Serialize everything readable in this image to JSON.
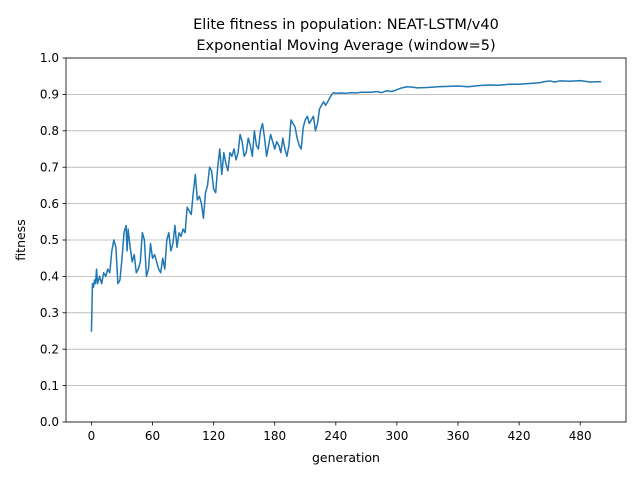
{
  "chart_data": {
    "type": "line",
    "title": "Elite fitness in population: NEAT-LSTM/v40",
    "subtitle": "Exponential Moving Average (window=5)",
    "xlabel": "generation",
    "ylabel": "fitness",
    "xlim": [
      -25,
      525
    ],
    "ylim": [
      0.0,
      1.0
    ],
    "xticks": [
      0,
      60,
      120,
      180,
      240,
      300,
      360,
      420,
      480
    ],
    "yticks": [
      0.0,
      0.1,
      0.2,
      0.3,
      0.4,
      0.5,
      0.6,
      0.7,
      0.8,
      0.9,
      1.0
    ],
    "ytick_labels": [
      "0.0",
      "0.1",
      "0.2",
      "0.3",
      "0.4",
      "0.5",
      "0.6",
      "0.7",
      "0.8",
      "0.9",
      "1.0"
    ],
    "grid": "horizontal",
    "line_color": "#1f77b4",
    "series": [
      {
        "x": [
          0,
          1,
          2,
          3,
          4,
          5,
          6,
          8,
          10,
          12,
          14,
          16,
          18,
          20,
          22,
          24,
          26,
          28,
          30,
          32,
          34,
          35,
          36,
          38,
          40,
          42,
          44,
          46,
          48,
          50,
          52,
          54,
          56,
          58,
          60,
          62,
          64,
          66,
          68,
          70,
          72,
          74,
          76,
          78,
          80,
          82,
          84,
          86,
          88,
          90,
          92,
          94,
          96,
          98,
          100,
          102,
          104,
          106,
          108,
          110,
          112,
          114,
          116,
          118,
          120,
          122,
          124,
          126,
          128,
          130,
          132,
          134,
          136,
          138,
          140,
          142,
          144,
          146,
          148,
          150,
          152,
          154,
          156,
          158,
          160,
          162,
          164,
          166,
          168,
          170,
          172,
          174,
          176,
          178,
          180,
          182,
          184,
          186,
          188,
          190,
          192,
          194,
          196,
          198,
          200,
          202,
          204,
          206,
          208,
          210,
          212,
          214,
          216,
          218,
          220,
          222,
          224,
          226,
          228,
          230,
          232,
          234,
          236,
          238,
          240,
          245,
          250,
          255,
          260,
          265,
          270,
          275,
          280,
          285,
          290,
          295,
          300,
          305,
          310,
          315,
          320,
          330,
          340,
          350,
          360,
          370,
          380,
          390,
          400,
          410,
          420,
          430,
          440,
          445,
          450,
          455,
          460,
          470,
          480,
          490,
          500
        ],
        "y": [
          0.25,
          0.38,
          0.37,
          0.39,
          0.38,
          0.42,
          0.38,
          0.4,
          0.38,
          0.41,
          0.4,
          0.42,
          0.41,
          0.47,
          0.5,
          0.48,
          0.38,
          0.39,
          0.45,
          0.52,
          0.54,
          0.47,
          0.53,
          0.48,
          0.44,
          0.46,
          0.41,
          0.42,
          0.44,
          0.52,
          0.5,
          0.4,
          0.42,
          0.49,
          0.45,
          0.46,
          0.44,
          0.42,
          0.41,
          0.45,
          0.42,
          0.5,
          0.52,
          0.47,
          0.49,
          0.54,
          0.48,
          0.52,
          0.51,
          0.53,
          0.52,
          0.59,
          0.58,
          0.57,
          0.63,
          0.68,
          0.61,
          0.62,
          0.6,
          0.56,
          0.63,
          0.65,
          0.7,
          0.69,
          0.64,
          0.63,
          0.7,
          0.75,
          0.68,
          0.74,
          0.71,
          0.69,
          0.74,
          0.73,
          0.75,
          0.72,
          0.74,
          0.79,
          0.77,
          0.73,
          0.74,
          0.78,
          0.76,
          0.73,
          0.8,
          0.76,
          0.75,
          0.8,
          0.82,
          0.78,
          0.73,
          0.76,
          0.79,
          0.77,
          0.75,
          0.77,
          0.76,
          0.74,
          0.78,
          0.75,
          0.73,
          0.76,
          0.83,
          0.82,
          0.81,
          0.78,
          0.76,
          0.75,
          0.81,
          0.83,
          0.84,
          0.82,
          0.83,
          0.84,
          0.8,
          0.82,
          0.86,
          0.87,
          0.88,
          0.87,
          0.88,
          0.89,
          0.9,
          0.905,
          0.903,
          0.904,
          0.903,
          0.905,
          0.904,
          0.906,
          0.906,
          0.906,
          0.908,
          0.905,
          0.91,
          0.908,
          0.913,
          0.918,
          0.921,
          0.92,
          0.918,
          0.919,
          0.921,
          0.922,
          0.923,
          0.921,
          0.924,
          0.926,
          0.925,
          0.928,
          0.928,
          0.93,
          0.932,
          0.935,
          0.937,
          0.934,
          0.937,
          0.936,
          0.938,
          0.934,
          0.935
        ]
      }
    ]
  }
}
